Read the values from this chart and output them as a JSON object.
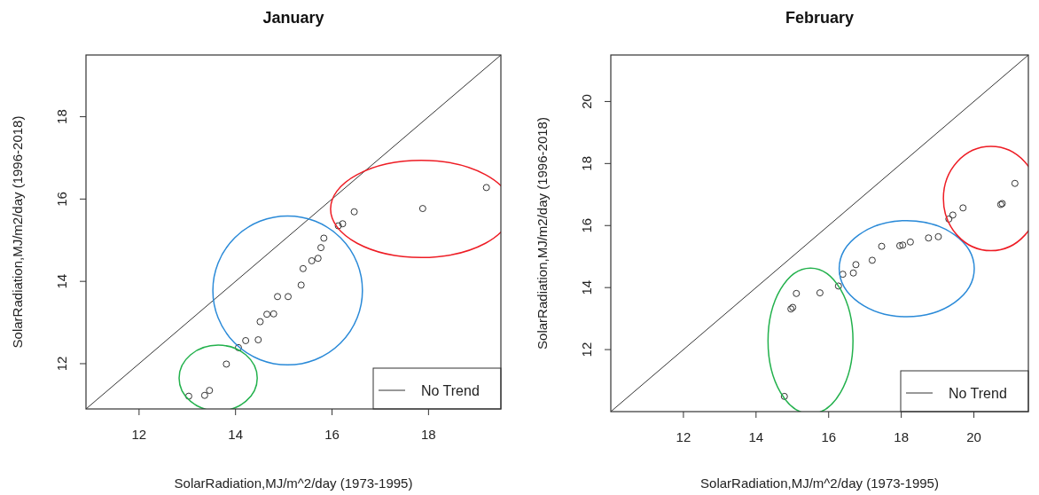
{
  "chart_data": [
    {
      "type": "scatter",
      "title": "January",
      "xlabel": "SolarRadiation,MJ/m^2/day (1973-1995)",
      "ylabel": "SolarRadiation,MJ/m2/day (1996-2018)",
      "xlim": [
        10.9,
        19.5
      ],
      "ylim": [
        10.9,
        19.5
      ],
      "xticks": [
        12,
        14,
        16,
        18
      ],
      "yticks": [
        12,
        14,
        16,
        18
      ],
      "legend": "bottom right",
      "grid": false,
      "series": [
        {
          "marker": "circle",
          "color": "#333333",
          "x": [
            13.03,
            13.36,
            13.46,
            13.81,
            14.06,
            14.21,
            14.47,
            14.51,
            14.65,
            14.79,
            14.87,
            15.09,
            15.36,
            15.4,
            15.58,
            15.71,
            15.77,
            15.83,
            16.13,
            16.22,
            16.46,
            17.88,
            19.2
          ],
          "values": [
            11.21,
            11.23,
            11.35,
            11.99,
            12.39,
            12.56,
            12.58,
            13.02,
            13.2,
            13.21,
            13.63,
            13.63,
            13.91,
            14.31,
            14.5,
            14.56,
            14.82,
            15.05,
            15.35,
            15.4,
            15.69,
            15.77,
            16.28
          ]
        },
        {
          "type": "line",
          "name": "No Trend",
          "marker": "none",
          "color": "#333333",
          "x": [
            10.9,
            19.5
          ],
          "values": [
            10.9,
            19.5
          ]
        }
      ]
    },
    {
      "type": "scatter",
      "title": "February",
      "xlabel": "SolarRadiation,MJ/m^2/day (1973-1995)",
      "ylabel": "SolarRadiation,MJ/m2/day (1996-2018)",
      "xlim": [
        10,
        21.5
      ],
      "ylim": [
        10,
        21.5
      ],
      "xticks": [
        12,
        14,
        16,
        18,
        20
      ],
      "yticks": [
        12,
        14,
        16,
        18,
        20
      ],
      "legend": "bottom right",
      "grid": false,
      "series": [
        {
          "marker": "circle",
          "color": "#333333",
          "x": [
            14.78,
            14.96,
            15.01,
            15.11,
            15.76,
            16.27,
            16.39,
            16.68,
            16.75,
            17.2,
            17.46,
            17.96,
            18.04,
            18.25,
            18.75,
            19.02,
            19.31,
            19.42,
            19.7,
            20.74,
            20.78,
            21.13
          ],
          "values": [
            10.49,
            13.31,
            13.36,
            13.81,
            13.83,
            14.05,
            14.43,
            14.47,
            14.74,
            14.88,
            15.33,
            15.35,
            15.37,
            15.47,
            15.6,
            15.64,
            16.21,
            16.34,
            16.57,
            16.68,
            16.71,
            17.36
          ]
        },
        {
          "type": "line",
          "name": "No Trend",
          "marker": "none",
          "color": "#333333",
          "x": [
            10,
            21.5
          ],
          "values": [
            10,
            21.5
          ]
        }
      ]
    }
  ]
}
